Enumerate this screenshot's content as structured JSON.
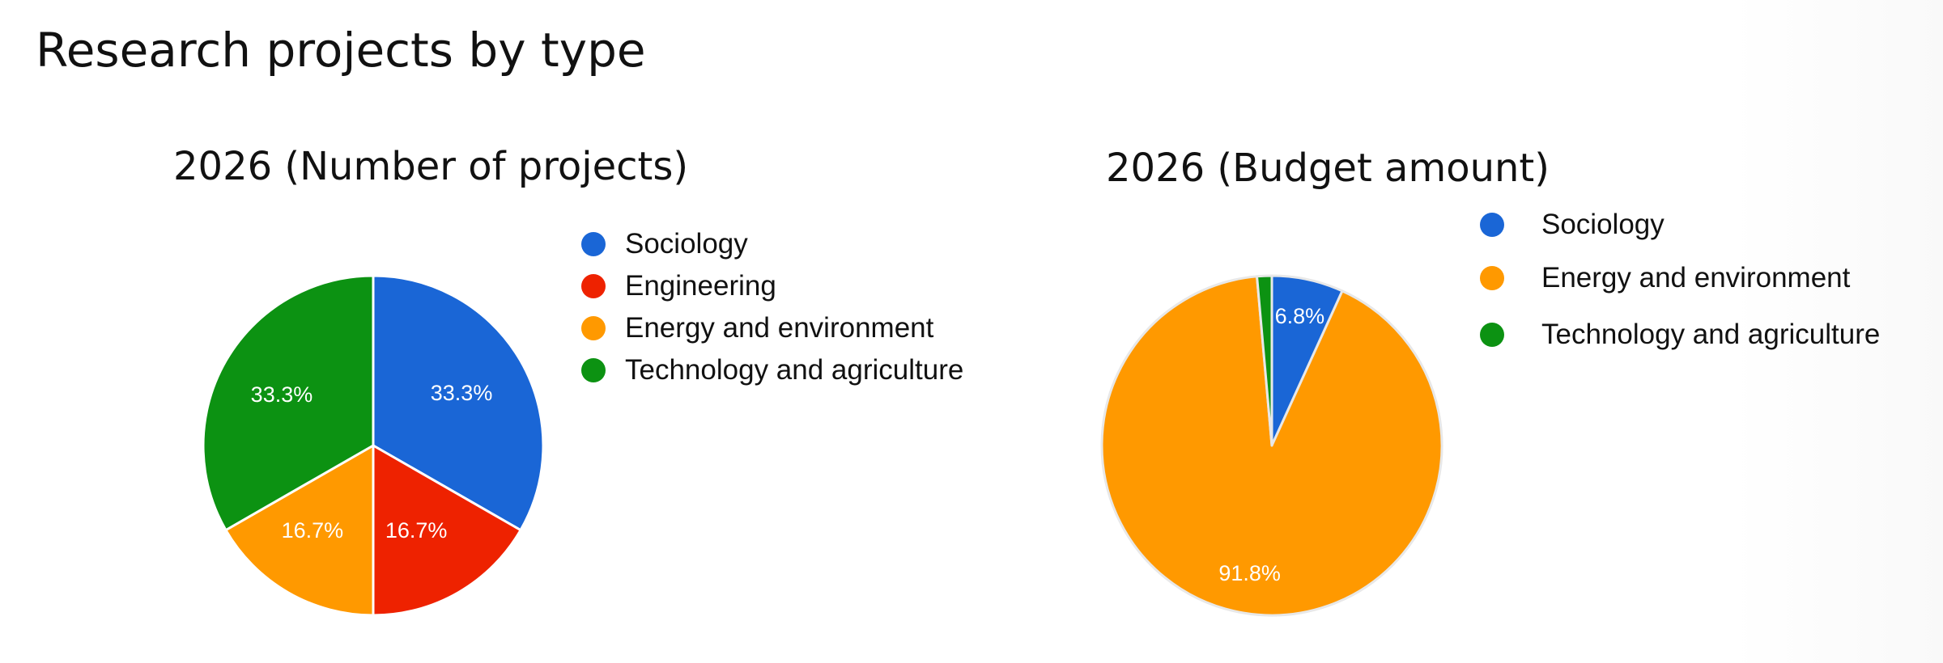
{
  "page": {
    "title": "Research projects by type"
  },
  "chart_data": [
    {
      "type": "pie",
      "title": "2026 (Number of projects)",
      "legend_position": "right",
      "categories": [
        "Sociology",
        "Engineering",
        "Energy and environment",
        "Technology and agriculture"
      ],
      "values": [
        33.3,
        16.7,
        16.7,
        33.3
      ],
      "labels": [
        "33.3%",
        "16.7%",
        "16.7%",
        "33.3%"
      ],
      "colors": [
        "#1a66d6",
        "#ee2200",
        "#ff9900",
        "#0c9212"
      ]
    },
    {
      "type": "pie",
      "title": "2026 (Budget amount)",
      "legend_position": "right",
      "categories": [
        "Sociology",
        "Energy and environment",
        "Technology and agriculture"
      ],
      "values": [
        6.8,
        91.8,
        1.4
      ],
      "labels": [
        "6.8%",
        "91.8%",
        ""
      ],
      "colors": [
        "#1a66d6",
        "#ff9900",
        "#0c9212"
      ]
    }
  ]
}
